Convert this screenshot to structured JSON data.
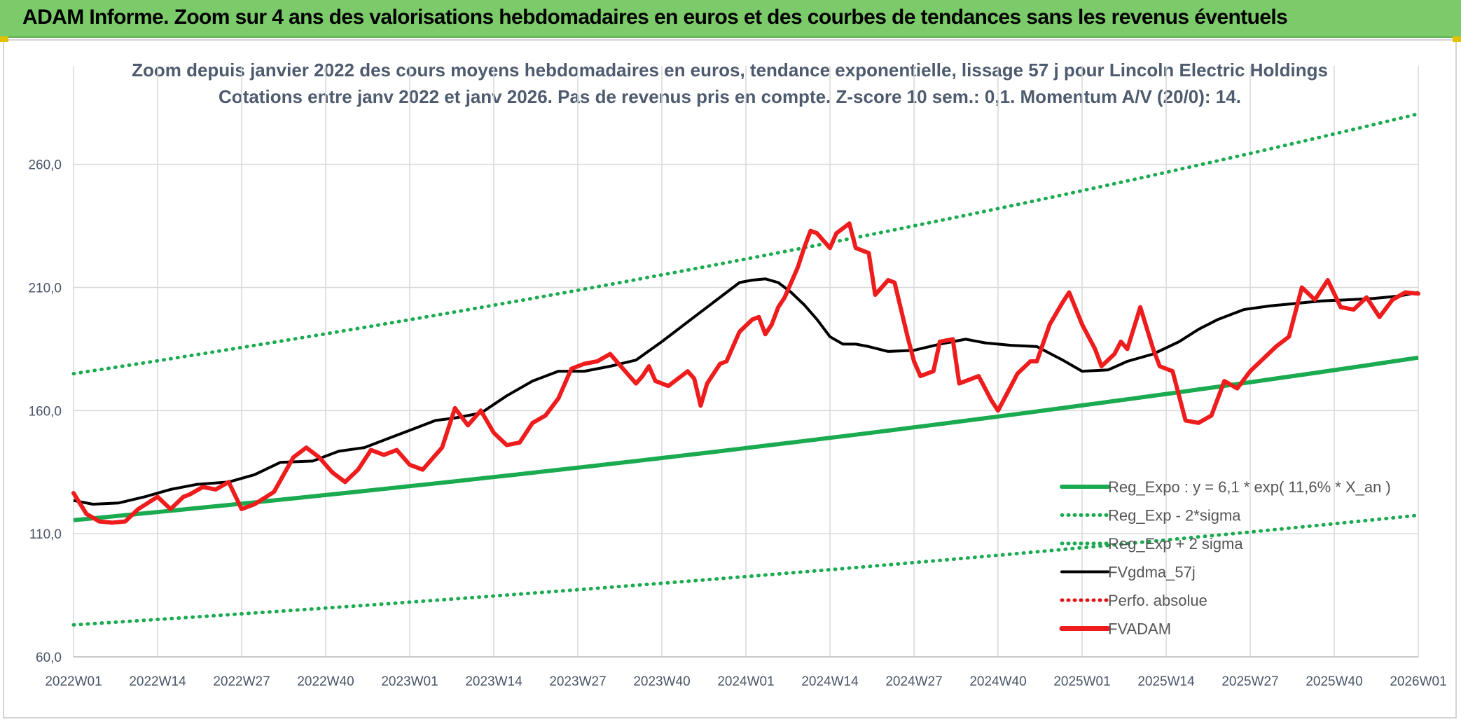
{
  "banner": {
    "title": "ADAM Informe. Zoom sur 4 ans des valorisations hebdomadaires en euros et des courbes de tendances sans les revenus éventuels"
  },
  "colors": {
    "banner": "#7ccb6a",
    "trend": "#1aaa50",
    "ma": "#000000",
    "adam": "#ee1c1c",
    "perf": "#e01010",
    "grid": "#d9d9d9"
  },
  "chart_data": {
    "type": "line",
    "title": "Zoom depuis janvier 2022 des cours moyens hebdomadaires en euros, tendance exponentielle, lissage 57 j pour Lincoln Electric Holdings",
    "subtitle": "Cotations entre janv 2022 et janv 2026. Pas de revenus pris en compte. Z-score 10 sem.: 0,1. Momentum A/V (20/0): 14.",
    "xlabel": "",
    "ylabel": "",
    "x_ticks": [
      "2022W01",
      "2022W14",
      "2022W27",
      "2022W40",
      "2023W01",
      "2023W14",
      "2023W27",
      "2023W40",
      "2024W01",
      "2024W14",
      "2024W27",
      "2024W40",
      "2025W01",
      "2025W14",
      "2025W27",
      "2025W40",
      "2026W01"
    ],
    "y_ticks": [
      "60,0",
      "110,0",
      "160,0",
      "210,0",
      "260,0"
    ],
    "ylim": [
      60,
      300
    ],
    "x_range_weeks": [
      0,
      208
    ],
    "grid": true,
    "legend_position": "bottom-right",
    "legend": [
      {
        "label": "Reg_Expo : y = 6,1 * exp( 11,6% *  X_an )",
        "key": "trend",
        "style": "solid"
      },
      {
        "label": "Reg_Exp - 2*sigma",
        "key": "trend",
        "style": "dotted"
      },
      {
        "label": "Reg_Exp + 2 sigma",
        "key": "trend",
        "style": "dotted"
      },
      {
        "label": "FVgdma_57j",
        "key": "ma",
        "style": "solid"
      },
      {
        "label": "Perfo. absolue",
        "key": "perf",
        "style": "dotted"
      },
      {
        "label": "FVADAM",
        "key": "adam",
        "style": "solid-thick"
      }
    ],
    "series": [
      {
        "name": "Reg_Expo",
        "x": [
          0,
          208
        ],
        "values": [
          115.5,
          181.5
        ],
        "model": "exponential"
      },
      {
        "name": "Reg_Exp - 2*sigma",
        "x": [
          0,
          208
        ],
        "values": [
          73.0,
          117.5
        ],
        "model": "exponential"
      },
      {
        "name": "Reg_Exp + 2 sigma",
        "x": [
          0,
          208
        ],
        "values": [
          175.0,
          280.5
        ],
        "model": "exponential"
      },
      {
        "name": "FVgdma_57j",
        "x": [
          0,
          3,
          7,
          11,
          15,
          19,
          24,
          28,
          32,
          37,
          41,
          45,
          49,
          53,
          56,
          59,
          63,
          67,
          71,
          75,
          79,
          83,
          87,
          91,
          95,
          99,
          103,
          105,
          107,
          109,
          111,
          113,
          115,
          117,
          119,
          121,
          123,
          126,
          130,
          134,
          138,
          141,
          145,
          149,
          153,
          156,
          160,
          163,
          167,
          171,
          174,
          177,
          181,
          185,
          189,
          193,
          197,
          201,
          205,
          208
        ],
        "values": [
          123.5,
          122,
          122.5,
          125,
          128,
          130,
          131,
          134,
          139,
          139.5,
          143.5,
          145,
          149,
          153,
          156,
          157,
          159,
          166,
          172,
          176,
          176,
          178,
          180.5,
          188,
          196,
          204,
          212,
          213,
          213.5,
          212,
          208,
          203,
          197,
          190,
          187,
          187,
          186,
          184,
          184.5,
          187,
          189,
          187.5,
          186.5,
          186,
          180.5,
          176,
          176.5,
          180,
          183,
          188,
          193,
          197,
          201,
          202.5,
          203.5,
          204.5,
          205,
          205.5,
          206.5,
          208
        ]
      },
      {
        "name": "FVADAM",
        "x": [
          0,
          2,
          4,
          6,
          8,
          10,
          13,
          15,
          17,
          18,
          20,
          22,
          24,
          26,
          28,
          31,
          34,
          36,
          38,
          40,
          42,
          44,
          46,
          48,
          50,
          52,
          54,
          56,
          57,
          58,
          59,
          61,
          63,
          65,
          67,
          69,
          71,
          73,
          75,
          77,
          79,
          81,
          83,
          85,
          87,
          88,
          89,
          90,
          92,
          93,
          95,
          96,
          97,
          98,
          100,
          101,
          102,
          103,
          105,
          106,
          107,
          108,
          109,
          110,
          112,
          113,
          114,
          115,
          117,
          118,
          120,
          121,
          123,
          124,
          126,
          127,
          129,
          130,
          131,
          133,
          134,
          136,
          137,
          139,
          140,
          142,
          143,
          145,
          146,
          148,
          149,
          151,
          153,
          154,
          156,
          158,
          159,
          161,
          162,
          163,
          165,
          167,
          168,
          170,
          172,
          174,
          176,
          178,
          180,
          182,
          184,
          186,
          188,
          190,
          192,
          194,
          196,
          198,
          200,
          202,
          204,
          206,
          208
        ],
        "values": [
          126.5,
          118,
          115,
          114.5,
          115,
          120,
          125,
          120,
          125,
          126,
          129,
          128,
          131,
          120,
          122,
          127,
          141,
          145,
          141,
          135,
          131,
          136,
          144,
          142,
          144,
          138,
          136,
          142,
          145,
          153,
          161,
          154,
          160,
          151,
          146,
          147,
          155,
          158,
          165,
          177,
          179,
          180,
          183,
          177,
          171,
          174,
          178,
          172,
          170,
          172,
          176,
          173,
          162,
          171,
          179,
          180,
          186,
          192,
          197,
          198,
          191,
          195,
          202,
          206,
          218,
          226,
          233,
          232,
          226,
          232,
          236,
          226,
          224,
          207,
          213,
          212,
          190,
          180,
          174,
          176,
          188,
          189,
          171,
          173,
          174,
          164,
          160,
          170,
          175,
          180,
          180,
          195,
          204,
          208,
          195,
          185,
          178,
          183,
          188,
          185,
          202,
          185,
          178,
          176,
          156,
          155,
          158,
          172,
          169,
          176,
          181,
          186,
          190,
          210,
          205,
          213,
          202,
          201,
          206,
          198,
          205,
          208,
          207.5
        ]
      }
    ]
  }
}
